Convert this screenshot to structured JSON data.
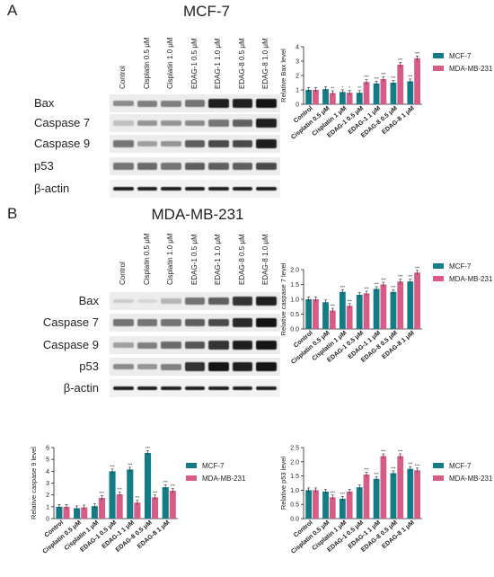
{
  "panels": {
    "a": {
      "letter": "A",
      "title": "MCF-7"
    },
    "b": {
      "letter": "B",
      "title": "MDA-MB-231"
    }
  },
  "lanes": [
    "Control",
    "Cisplatin 0.5 μM",
    "Cisplatin 1.0 μM",
    "EDAG-1 0.5 μM",
    "EDAG-1 1.0 μM",
    "EDAG-8 0.5 μM",
    "EDAG-8 1.0 μM"
  ],
  "blot_rows": [
    "Bax",
    "Caspase 7",
    "Caspase 9",
    "p53",
    "β-actin"
  ],
  "blots": {
    "a": {
      "Bax": [
        0.45,
        0.5,
        0.5,
        0.55,
        0.95,
        0.95,
        1.0
      ],
      "Caspase 7": [
        0.2,
        0.4,
        0.4,
        0.45,
        0.55,
        0.65,
        0.95
      ],
      "Caspase 9": [
        0.55,
        0.35,
        0.4,
        0.65,
        0.75,
        0.75,
        0.95
      ],
      "p53": [
        0.55,
        0.6,
        0.55,
        0.65,
        0.65,
        0.65,
        0.75
      ],
      "β-actin": [
        0.95,
        0.95,
        0.95,
        0.95,
        0.95,
        0.95,
        0.95
      ]
    },
    "b": {
      "Bax": [
        0.15,
        0.1,
        0.25,
        0.55,
        0.65,
        0.85,
        0.95
      ],
      "Caspase 7": [
        0.55,
        0.55,
        0.55,
        0.65,
        0.75,
        0.9,
        1.0
      ],
      "Caspase 9": [
        0.35,
        0.5,
        0.6,
        0.7,
        0.85,
        0.95,
        1.0
      ],
      "p53": [
        0.45,
        0.4,
        0.5,
        0.85,
        1.0,
        0.95,
        1.0
      ],
      "β-actin": [
        0.95,
        0.95,
        0.95,
        0.95,
        0.95,
        0.95,
        0.95
      ]
    }
  },
  "colors": {
    "mcf7": "#137c86",
    "mda": "#d85c88"
  },
  "chart_data": [
    {
      "type": "bar",
      "ylabel": "Relative Bax level",
      "ylim": [
        0,
        4
      ],
      "yticks": [
        0,
        1,
        2,
        3,
        4
      ],
      "categories": [
        "Control",
        "Cisplatin 0.5 μM",
        "Cisplatin 1 μM",
        "EDAG-1 0.5 μM",
        "EDAG-1 1 μM",
        "EDAG-8 0.5 μM",
        "EDAG-8 1 μM"
      ],
      "series": [
        {
          "name": "MCF-7",
          "values": [
            1.0,
            1.05,
            0.85,
            0.8,
            1.45,
            1.5,
            1.6
          ],
          "sig": [
            "",
            "",
            "*",
            "**",
            "***",
            "***",
            "***"
          ]
        },
        {
          "name": "MDA-MB-231",
          "values": [
            1.0,
            0.78,
            0.8,
            1.55,
            1.75,
            2.75,
            3.2
          ],
          "sig": [
            "",
            "**",
            "*",
            "***",
            "***",
            "***",
            "***"
          ]
        }
      ],
      "legend": "right"
    },
    {
      "type": "bar",
      "ylabel": "Relative caspase 7 level",
      "ylim": [
        0,
        2.0
      ],
      "yticks": [
        0.0,
        0.5,
        1.0,
        1.5,
        2.0
      ],
      "categories": [
        "Control",
        "Cisplatin 0.5 μM",
        "Cisplatin 1 μM",
        "EDAG-1 0.5 μM",
        "EDAG-1 1 μM",
        "EDAG-8 0.5 μM",
        "EDAG-8 1 μM"
      ],
      "series": [
        {
          "name": "MCF-7",
          "values": [
            1.0,
            0.9,
            1.25,
            1.15,
            1.35,
            1.25,
            1.6
          ],
          "sig": [
            "",
            "",
            "***",
            "",
            "***",
            "***",
            "***"
          ]
        },
        {
          "name": "MDA-MB-231",
          "values": [
            1.0,
            0.62,
            0.78,
            1.2,
            1.5,
            1.6,
            1.9
          ],
          "sig": [
            "",
            "***",
            "***",
            "***",
            "***",
            "***",
            "***"
          ]
        }
      ],
      "legend": "right"
    },
    {
      "type": "bar",
      "ylabel": "Relative caspase 9 level",
      "ylim": [
        0,
        6
      ],
      "yticks": [
        0,
        1,
        2,
        3,
        4,
        5,
        6
      ],
      "categories": [
        "Control",
        "Cisplatin 0.5 μM",
        "Cisplatin 1 μM",
        "EDAG-1 0.5 μM",
        "EDAG-1 1 μM",
        "EDAG-8 0.5 μM",
        "EDAG-8 1 μM"
      ],
      "series": [
        {
          "name": "MCF-7",
          "values": [
            1.0,
            0.88,
            1.05,
            4.0,
            4.15,
            5.55,
            2.65
          ],
          "sig": [
            "",
            "",
            "",
            "***",
            "***",
            "***",
            "***"
          ]
        },
        {
          "name": "MDA-MB-231",
          "values": [
            1.0,
            0.95,
            1.75,
            2.05,
            1.35,
            1.8,
            2.35
          ],
          "sig": [
            "",
            "",
            "***",
            "***",
            "***",
            "***",
            "***"
          ]
        }
      ],
      "legend": "right"
    },
    {
      "type": "bar",
      "ylabel": "Relative p53 level",
      "ylim": [
        0,
        2.5
      ],
      "yticks": [
        0.0,
        0.5,
        1.0,
        1.5,
        2.0,
        2.5
      ],
      "categories": [
        "Control",
        "Cisplatin 0.5 μM",
        "Cisplatin 1 μM",
        "EDAG-1 0.5 μM",
        "EDAG-1 1 μM",
        "EDAG-8 0.5 μM",
        "EDAG-8 1 μM"
      ],
      "series": [
        {
          "name": "MCF-7",
          "values": [
            1.0,
            0.95,
            0.7,
            1.1,
            1.4,
            1.6,
            1.75
          ],
          "sig": [
            "",
            "",
            "***",
            "",
            "***",
            "***",
            "***"
          ]
        },
        {
          "name": "MDA-MB-231",
          "values": [
            1.0,
            0.75,
            0.95,
            1.55,
            2.2,
            2.2,
            1.7
          ],
          "sig": [
            "",
            "***",
            "",
            "***",
            "***",
            "***",
            "***"
          ]
        }
      ],
      "legend": "right"
    }
  ]
}
